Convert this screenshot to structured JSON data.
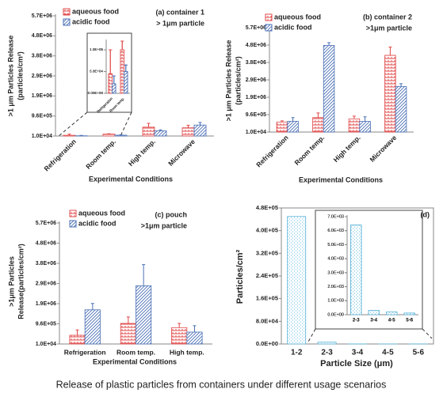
{
  "chart_data": [
    {
      "type": "bar",
      "title": "(a) container 1",
      "subtitle": "> 1μm particle",
      "ylabel": [
        ">1 μm Particles Release",
        "(particles/cm²)"
      ],
      "xlabel": "Experimental Conditions",
      "categories": [
        "Refrigeration",
        "Room temp.",
        "High temp.",
        "Microwave"
      ],
      "series": [
        {
          "name": "aqueous food",
          "color": "#e04848",
          "values": [
            45000,
            100000,
            430000,
            400000
          ],
          "errors": [
            55000,
            20000,
            180000,
            120000
          ]
        },
        {
          "name": "acidic food",
          "color": "#4a6fb5",
          "values": [
            22000,
            50000,
            260000,
            530000
          ],
          "errors": [
            18000,
            15000,
            40000,
            120000
          ]
        }
      ],
      "ylim": [
        10000,
        5710000
      ],
      "yticks": [
        {
          "value": 10000,
          "label": "1.0E+04"
        },
        {
          "value": 960000,
          "label": "9.6E+05"
        },
        {
          "value": 1910000,
          "label": "1.9E+06"
        },
        {
          "value": 2860000,
          "label": "2.9E+06"
        },
        {
          "value": 3810000,
          "label": "3.8E+06"
        },
        {
          "value": 4760000,
          "label": "4.8E+06"
        },
        {
          "value": 5710000,
          "label": "5.7E+06"
        }
      ],
      "inset": {
        "categories": [
          "Refrigeration",
          "Room temp."
        ],
        "series": [
          {
            "color": "#e04848",
            "values": [
              45000,
              100000
            ],
            "errors": [
              55000,
              20000
            ]
          },
          {
            "color": "#4a6fb5",
            "values": [
              22000,
              50000
            ],
            "errors": [
              18000,
              15000
            ]
          }
        ],
        "ylim": [
          0,
          120000
        ],
        "yticks": [
          {
            "value": 0,
            "label": "0.00E+00"
          },
          {
            "value": 50000,
            "label": "5.0E+04"
          },
          {
            "value": 100000,
            "label": "1.0E+05"
          }
        ]
      }
    },
    {
      "type": "bar",
      "title": "(b) container 2",
      "subtitle": ">1μm particle",
      "ylabel": [
        ">1 μm Particles Release",
        "(particles/cm²)"
      ],
      "xlabel": "Experimental Conditions",
      "categories": [
        "Refrigeration",
        "Room temp.",
        "High temp.",
        "Microwave"
      ],
      "series": [
        {
          "name": "aqueous food",
          "color": "#e04848",
          "values": [
            560000,
            800000,
            730000,
            4200000
          ],
          "errors": [
            60000,
            250000,
            150000,
            450000
          ]
        },
        {
          "name": "acidic food",
          "color": "#4a6fb5",
          "values": [
            600000,
            4740000,
            590000,
            2500000
          ],
          "errors": [
            200000,
            150000,
            250000,
            150000
          ]
        }
      ],
      "ylim": [
        10000,
        5710000
      ],
      "yticks": [
        {
          "value": 10000,
          "label": "1.0E+04"
        },
        {
          "value": 960000,
          "label": "9.6E+05"
        },
        {
          "value": 1910000,
          "label": "1.9E+06"
        },
        {
          "value": 2860000,
          "label": "2.9E+06"
        },
        {
          "value": 3810000,
          "label": "3.8E+06"
        },
        {
          "value": 4760000,
          "label": "4.8E+06"
        },
        {
          "value": 5710000,
          "label": "5.7E+06"
        }
      ]
    },
    {
      "type": "bar",
      "title": "(c) pouch",
      "subtitle": ">1μm particle",
      "ylabel": [
        ">1μm Particles",
        "Release(particles/cm²)"
      ],
      "xlabel": "Experimental Conditions",
      "categories": [
        "Refrigeration",
        "Room temp.",
        "High temp."
      ],
      "series": [
        {
          "name": "aqueous food",
          "color": "#e04848",
          "values": [
            420000,
            980000,
            780000
          ],
          "errors": [
            250000,
            300000,
            200000
          ]
        },
        {
          "name": "acidic food",
          "color": "#4a6fb5",
          "values": [
            1620000,
            2750000,
            570000
          ],
          "errors": [
            300000,
            1000000,
            300000
          ]
        }
      ],
      "ylim": [
        10000,
        5710000
      ],
      "yticks": [
        {
          "value": 10000,
          "label": "1.0E+04"
        },
        {
          "value": 960000,
          "label": "9.6E+05"
        },
        {
          "value": 1910000,
          "label": "1.9E+06"
        },
        {
          "value": 2860000,
          "label": "2.9E+06"
        },
        {
          "value": 3810000,
          "label": "3.8E+06"
        },
        {
          "value": 4760000,
          "label": "4.8E+06"
        },
        {
          "value": 5710000,
          "label": "5.7E+06"
        }
      ]
    },
    {
      "type": "bar",
      "title": "(d)",
      "ylabel": [
        "Particles/cm²"
      ],
      "xlabel": "Particle Size (μm)",
      "categories": [
        "1-2",
        "2-3",
        "3-4",
        "4-5",
        "5-6"
      ],
      "values": [
        450000,
        6400,
        300,
        200,
        120
      ],
      "color": "#5bb5d9",
      "ylim": [
        0,
        480000
      ],
      "yticks": [
        {
          "value": 0,
          "label": "0.0E+00"
        },
        {
          "value": 80000,
          "label": "8.0E+04"
        },
        {
          "value": 160000,
          "label": "1.6E+05"
        },
        {
          "value": 240000,
          "label": "2.4E+05"
        },
        {
          "value": 320000,
          "label": "3.2E+05"
        },
        {
          "value": 400000,
          "label": "4.0E+05"
        },
        {
          "value": 480000,
          "label": "4.8E+05"
        }
      ],
      "inset": {
        "categories": [
          "2-3",
          "3-4",
          "4-5",
          "5-6"
        ],
        "values": [
          6400,
          300,
          200,
          120
        ],
        "color": "#5bb5d9",
        "ylim": [
          0,
          7000
        ],
        "yticks": [
          {
            "value": 0,
            "label": "0.0E+00"
          },
          {
            "value": 1000,
            "label": "1.0E+03"
          },
          {
            "value": 2000,
            "label": "2.0E+03"
          },
          {
            "value": 3000,
            "label": "3.0E+03"
          },
          {
            "value": 4000,
            "label": "4.0E+03"
          },
          {
            "value": 5000,
            "label": "5.0E+03"
          },
          {
            "value": 6000,
            "label": "6.0E+03"
          },
          {
            "value": 7000,
            "label": "7.0E+03"
          }
        ]
      }
    }
  ],
  "caption": "Release of plastic particles from containers under different usage scenarios"
}
